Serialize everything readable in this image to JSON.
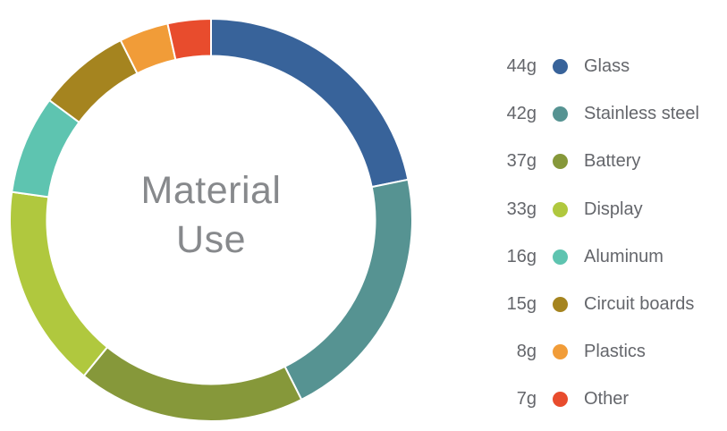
{
  "page": {
    "background": "#ffffff"
  },
  "chart_data": {
    "type": "pie",
    "variant": "donut",
    "title": "Material Use",
    "unit": "g",
    "start_angle": "top",
    "direction": "clockwise",
    "legend_position": "right",
    "total": 202,
    "title_color": "#87898C",
    "legend_text_color": "#64666B",
    "segment_gap_color": "#ffffff",
    "items": [
      {
        "label": "Glass",
        "value": 44,
        "value_label": "44g",
        "color": "#38639A"
      },
      {
        "label": "Stainless steel",
        "value": 42,
        "value_label": "42g",
        "color": "#569392"
      },
      {
        "label": "Battery",
        "value": 37,
        "value_label": "37g",
        "color": "#86983A"
      },
      {
        "label": "Display",
        "value": 33,
        "value_label": "33g",
        "color": "#B0C83E"
      },
      {
        "label": "Aluminum",
        "value": 16,
        "value_label": "16g",
        "color": "#5EC4B0"
      },
      {
        "label": "Circuit boards",
        "value": 15,
        "value_label": "15g",
        "color": "#A5841F"
      },
      {
        "label": "Plastics",
        "value": 8,
        "value_label": "8g",
        "color": "#F19C38"
      },
      {
        "label": "Other",
        "value": 7,
        "value_label": "7g",
        "color": "#E84C2D"
      }
    ]
  }
}
